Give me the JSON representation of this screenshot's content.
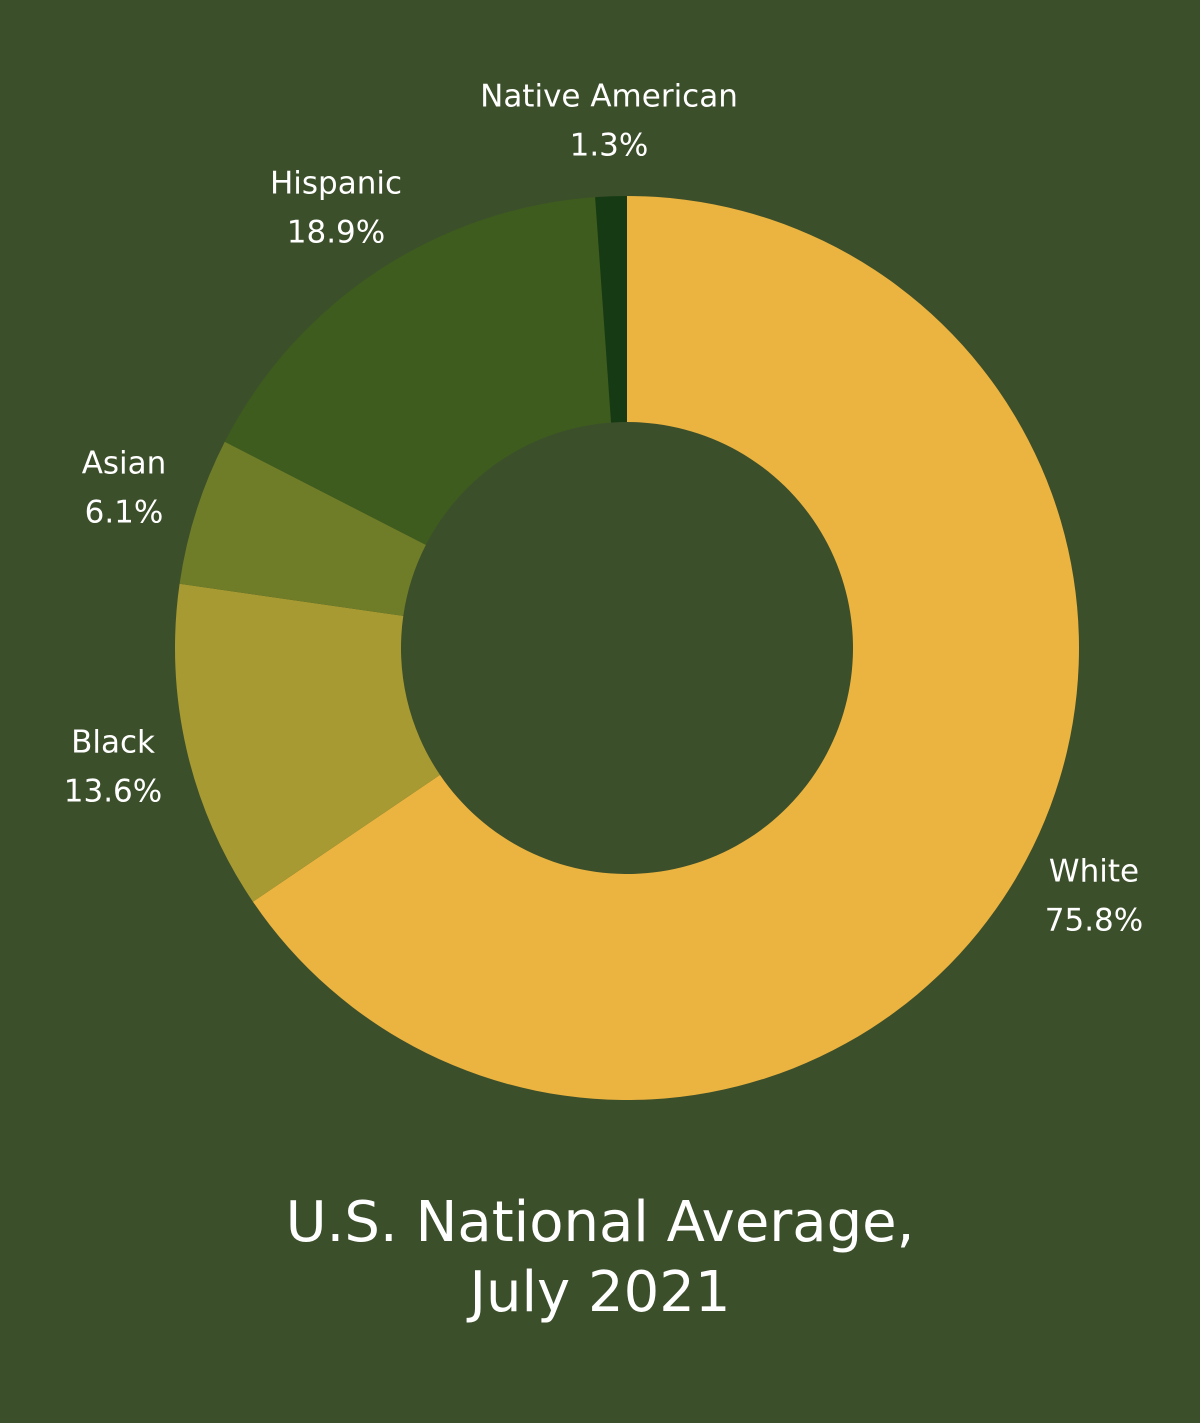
{
  "colors": {
    "background": "#3c4f2b",
    "text": "#ffffff"
  },
  "chart_data": {
    "type": "pie",
    "donut": true,
    "title_lines": [
      "U.S. National Average,",
      "July 2021"
    ],
    "slices": [
      {
        "label": "White",
        "value": 75.8,
        "display": "75.8%",
        "color": "#ebb340"
      },
      {
        "label": "Black",
        "value": 13.6,
        "display": "13.6%",
        "color": "#a89a32"
      },
      {
        "label": "Asian",
        "value": 6.1,
        "display": "6.1%",
        "color": "#6f7c28"
      },
      {
        "label": "Hispanic",
        "value": 18.9,
        "display": "18.9%",
        "color": "#3e5c1e"
      },
      {
        "label": "Native American",
        "value": 1.3,
        "display": "1.3%",
        "color": "#163b14"
      }
    ],
    "legend": "none"
  }
}
